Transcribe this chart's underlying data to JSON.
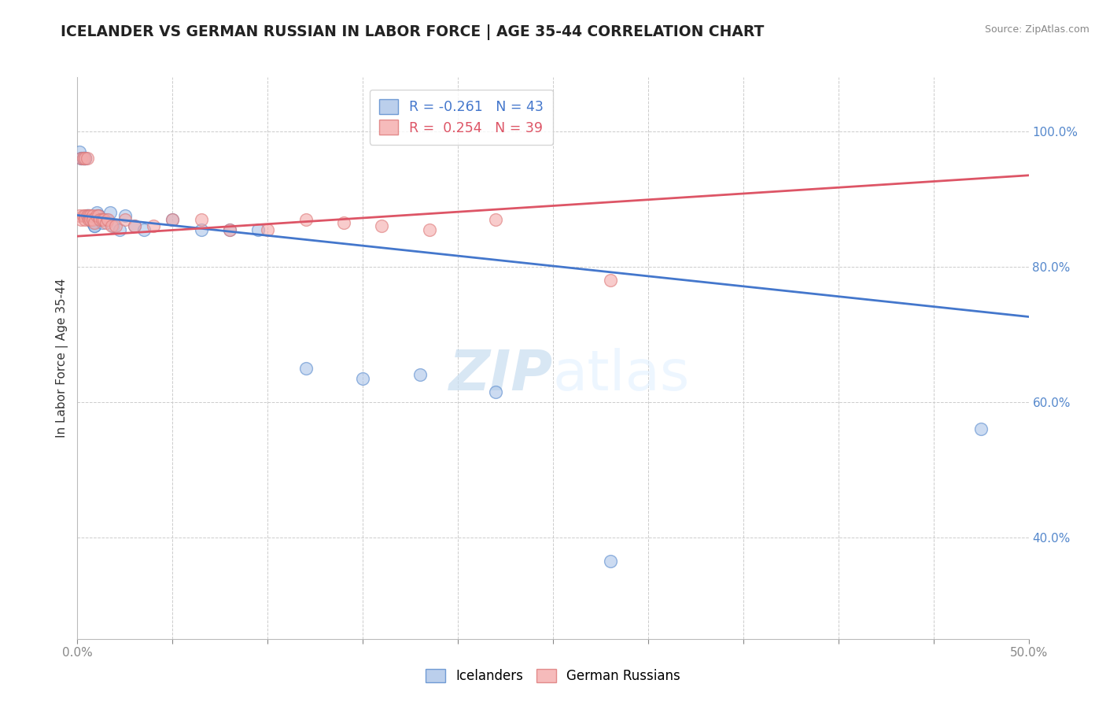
{
  "title": "ICELANDER VS GERMAN RUSSIAN IN LABOR FORCE | AGE 35-44 CORRELATION CHART",
  "source": "Source: ZipAtlas.com",
  "ylabel": "In Labor Force | Age 35-44",
  "x_min": 0.0,
  "x_max": 0.5,
  "y_min": 0.25,
  "y_max": 1.08,
  "y_ticks": [
    0.4,
    0.6,
    0.8,
    1.0
  ],
  "y_tick_labels": [
    "40.0%",
    "60.0%",
    "80.0%",
    "100.0%"
  ],
  "grid_color": "#cccccc",
  "blue_fill": "#aac4e8",
  "blue_edge": "#5588cc",
  "pink_fill": "#f4aaaa",
  "pink_edge": "#dd7777",
  "blue_line_color": "#4477cc",
  "pink_line_color": "#dd5566",
  "legend_blue_R": "-0.261",
  "legend_blue_N": "43",
  "legend_pink_R": "0.254",
  "legend_pink_N": "39",
  "legend_label_blue": "Icelanders",
  "legend_label_pink": "German Russians",
  "watermark_zip": "ZIP",
  "watermark_atlas": "atlas",
  "blue_line_x0": 0.0,
  "blue_line_y0": 0.876,
  "blue_line_x1": 0.5,
  "blue_line_y1": 0.726,
  "pink_line_x0": 0.0,
  "pink_line_y0": 0.845,
  "pink_line_x1": 0.5,
  "pink_line_y1": 0.935,
  "icelanders_x": [
    0.001,
    0.002,
    0.002,
    0.003,
    0.003,
    0.003,
    0.004,
    0.004,
    0.004,
    0.005,
    0.005,
    0.005,
    0.006,
    0.006,
    0.007,
    0.007,
    0.008,
    0.008,
    0.009,
    0.009,
    0.01,
    0.011,
    0.011,
    0.012,
    0.013,
    0.014,
    0.015,
    0.017,
    0.019,
    0.022,
    0.025,
    0.03,
    0.035,
    0.05,
    0.065,
    0.08,
    0.095,
    0.12,
    0.15,
    0.18,
    0.22,
    0.28,
    0.475
  ],
  "icelanders_y": [
    0.97,
    0.96,
    0.96,
    0.96,
    0.96,
    0.96,
    0.96,
    0.96,
    0.96,
    0.875,
    0.875,
    0.875,
    0.875,
    0.875,
    0.87,
    0.87,
    0.865,
    0.865,
    0.86,
    0.86,
    0.88,
    0.875,
    0.875,
    0.87,
    0.865,
    0.87,
    0.87,
    0.88,
    0.86,
    0.855,
    0.875,
    0.86,
    0.855,
    0.87,
    0.855,
    0.855,
    0.855,
    0.65,
    0.635,
    0.64,
    0.615,
    0.365,
    0.56
  ],
  "german_russians_x": [
    0.001,
    0.002,
    0.002,
    0.003,
    0.003,
    0.004,
    0.004,
    0.004,
    0.005,
    0.005,
    0.006,
    0.006,
    0.007,
    0.007,
    0.008,
    0.008,
    0.009,
    0.01,
    0.011,
    0.012,
    0.013,
    0.014,
    0.015,
    0.016,
    0.018,
    0.02,
    0.025,
    0.03,
    0.04,
    0.05,
    0.065,
    0.08,
    0.1,
    0.12,
    0.14,
    0.16,
    0.185,
    0.22,
    0.28
  ],
  "german_russians_y": [
    0.875,
    0.96,
    0.87,
    0.96,
    0.875,
    0.96,
    0.875,
    0.87,
    0.96,
    0.875,
    0.875,
    0.87,
    0.875,
    0.87,
    0.875,
    0.87,
    0.865,
    0.875,
    0.875,
    0.87,
    0.87,
    0.87,
    0.865,
    0.87,
    0.86,
    0.86,
    0.87,
    0.86,
    0.86,
    0.87,
    0.87,
    0.855,
    0.855,
    0.87,
    0.865,
    0.86,
    0.855,
    0.87,
    0.78
  ]
}
